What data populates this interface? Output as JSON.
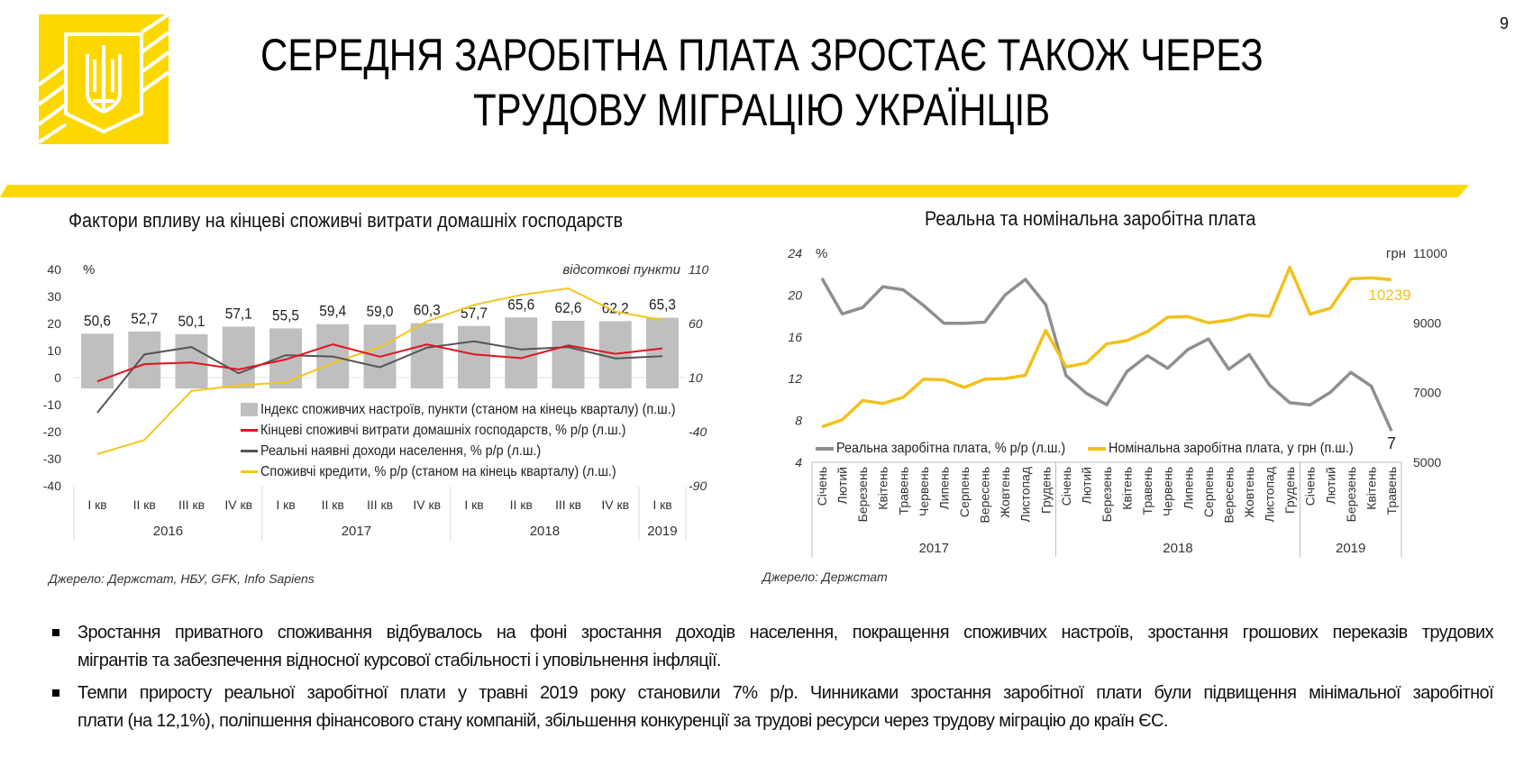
{
  "page_number": "9",
  "title": {
    "lines": [
      "СЕРЕДНЯ ЗАРОБІТНА ПЛАТА ЗРОСТАЄ ТАКОЖ ЧЕРЕЗ",
      "ТРУДОВУ МІГРАЦІЮ УКРАЇНЦІВ"
    ]
  },
  "colors": {
    "brand_yellow": "#fdd800",
    "bar_grey": "#bfbfbf",
    "red": "#e0141e",
    "dark_grey": "#555555",
    "credit_yellow": "#f2c71b",
    "real_grey": "#8f8f8f",
    "nominal_yellow": "#f2c21b"
  },
  "chart_data": [
    {
      "type": "bar",
      "title": "Фактори впливу на кінцеві споживчі витрати домашніх господарств",
      "left_axis": {
        "unit": "%",
        "min": -40,
        "max": 40,
        "ticks": [
          "40",
          "30",
          "20",
          "10",
          "0",
          "-10",
          "-20",
          "-30",
          "-40"
        ]
      },
      "right_axis": {
        "unit": "відсоткові пункти",
        "min": -90,
        "max": 110,
        "ticks": [
          "110",
          "60",
          "10",
          "-40",
          "-90"
        ]
      },
      "categories": [
        "I кв",
        "II кв",
        "III кв",
        "IV кв",
        "I кв",
        "II кв",
        "III кв",
        "IV кв",
        "I кв",
        "II кв",
        "III кв",
        "IV кв",
        "I кв"
      ],
      "year_groups": [
        {
          "label": "2016",
          "count": 4
        },
        {
          "label": "2017",
          "count": 4
        },
        {
          "label": "2018",
          "count": 4
        },
        {
          "label": "2019",
          "count": 1
        }
      ],
      "series": [
        {
          "name": "Індекс споживчих настроїв, пункти  (станом на кінець кварталу)  (п.ш.)",
          "kind": "bar",
          "axis": "right",
          "values": [
            50.6,
            52.7,
            50.1,
            57.1,
            55.5,
            59.4,
            59.0,
            60.3,
            57.7,
            65.6,
            62.6,
            62.2,
            65.3
          ],
          "labels": [
            "50,6",
            "52,7",
            "50,1",
            "57,1",
            "55,5",
            "59,4",
            "59,0",
            "60,3",
            "57,7",
            "65,6",
            "62,6",
            "62,2",
            "65,3"
          ]
        },
        {
          "name": "Кінцеві споживчі витрати домашніх господарств, % р/р (л.ш.)",
          "kind": "line",
          "axis": "left",
          "values": [
            -1.4,
            5.0,
            5.6,
            3.0,
            6.7,
            12.3,
            7.7,
            12.3,
            8.6,
            7.2,
            11.9,
            8.8,
            10.8
          ]
        },
        {
          "name": "Реальні наявні доходи населення, % р/р (л.ш.)",
          "kind": "line",
          "axis": "left",
          "values": [
            -13.0,
            8.6,
            11.3,
            1.6,
            8.3,
            7.8,
            3.8,
            11.1,
            13.4,
            10.4,
            11.3,
            7.1,
            7.9
          ]
        },
        {
          "name": "Споживчі кредити, % р/р (станом на кінець кварталу) (л.ш.)",
          "kind": "line",
          "axis": "left",
          "values": [
            -28.3,
            -23.1,
            -4.9,
            -2.9,
            -1.7,
            5.4,
            11.3,
            20.8,
            26.9,
            30.6,
            33.0,
            24.4,
            21.3
          ]
        }
      ],
      "legend_position": "bottom-right",
      "source": "Джерело: Держстат, НБУ, GFK, Info Sapiens"
    },
    {
      "type": "line",
      "title": "Реальна та номінальна заробітна плата",
      "left_axis": {
        "unit": "%",
        "min": 4,
        "max": 24,
        "ticks": [
          "24",
          "20",
          "16",
          "12",
          "8",
          "4"
        ]
      },
      "right_axis": {
        "unit": "грн",
        "min": 5000,
        "max": 11000,
        "ticks": [
          "11000",
          "9000",
          "7000",
          "5000"
        ]
      },
      "categories": [
        "Січень",
        "Лютий",
        "Березень",
        "Квітень",
        "Травень",
        "Червень",
        "Липень",
        "Серпень",
        "Вересень",
        "Жовтень",
        "Листопад",
        "Грудень",
        "Січень",
        "Лютий",
        "Березень",
        "Квітень",
        "Травень",
        "Червень",
        "Липень",
        "Серпень",
        "Вересень",
        "Жовтень",
        "Листопад",
        "Грудень",
        "Січень",
        "Лютий",
        "Березень",
        "Квітень",
        "Травень"
      ],
      "year_groups": [
        {
          "label": "2017",
          "count": 12
        },
        {
          "label": "2018",
          "count": 12
        },
        {
          "label": "2019",
          "count": 5
        }
      ],
      "series": [
        {
          "name": "Реальна заробітна плата, % р/р (л.ш.)",
          "axis": "left",
          "values": [
            21.6,
            18.2,
            18.8,
            20.8,
            20.5,
            19.0,
            17.3,
            17.3,
            17.4,
            20.0,
            21.5,
            19.1,
            12.3,
            10.6,
            9.5,
            12.7,
            14.2,
            13.0,
            14.8,
            15.8,
            12.9,
            14.3,
            11.4,
            9.7,
            9.5,
            10.7,
            12.6,
            11.3,
            7.0
          ],
          "end_label": "7"
        },
        {
          "name": "Номінальна заробітна плата, у грн (п.ш.)",
          "axis": "right",
          "values": [
            6016,
            6222,
            6773,
            6687,
            6867,
            7384,
            7367,
            7151,
            7384,
            7401,
            7496,
            8787,
            7737,
            7849,
            8399,
            8494,
            8752,
            9165,
            9182,
            9002,
            9079,
            9234,
            9191,
            10594,
            9251,
            9423,
            10267,
            10293,
            10239
          ],
          "end_label": "10239"
        }
      ],
      "legend_position": "bottom",
      "source": "Джерело: Держстат"
    }
  ],
  "bullets": [
    {
      "lines": [
        "Зростання приватного споживання відбувалось на фоні зростання доходів населення, покращення споживчих настроїв,  зростання грошових переказів трудових",
        "мігрантів та забезпечення відносної курсової стабільності і уповільнення інфляції."
      ]
    },
    {
      "lines": [
        "Темпи приросту реальної заробітної плати у травні 2019 року становили 7% р/р.  Чинниками зростання заробітної плати були підвищення мінімальної заробітної",
        "плати (на 12,1%), поліпшення фінансового стану компаній, збільшення конкуренції за трудові ресурси через трудову міграцію до країн ЄС."
      ]
    }
  ]
}
